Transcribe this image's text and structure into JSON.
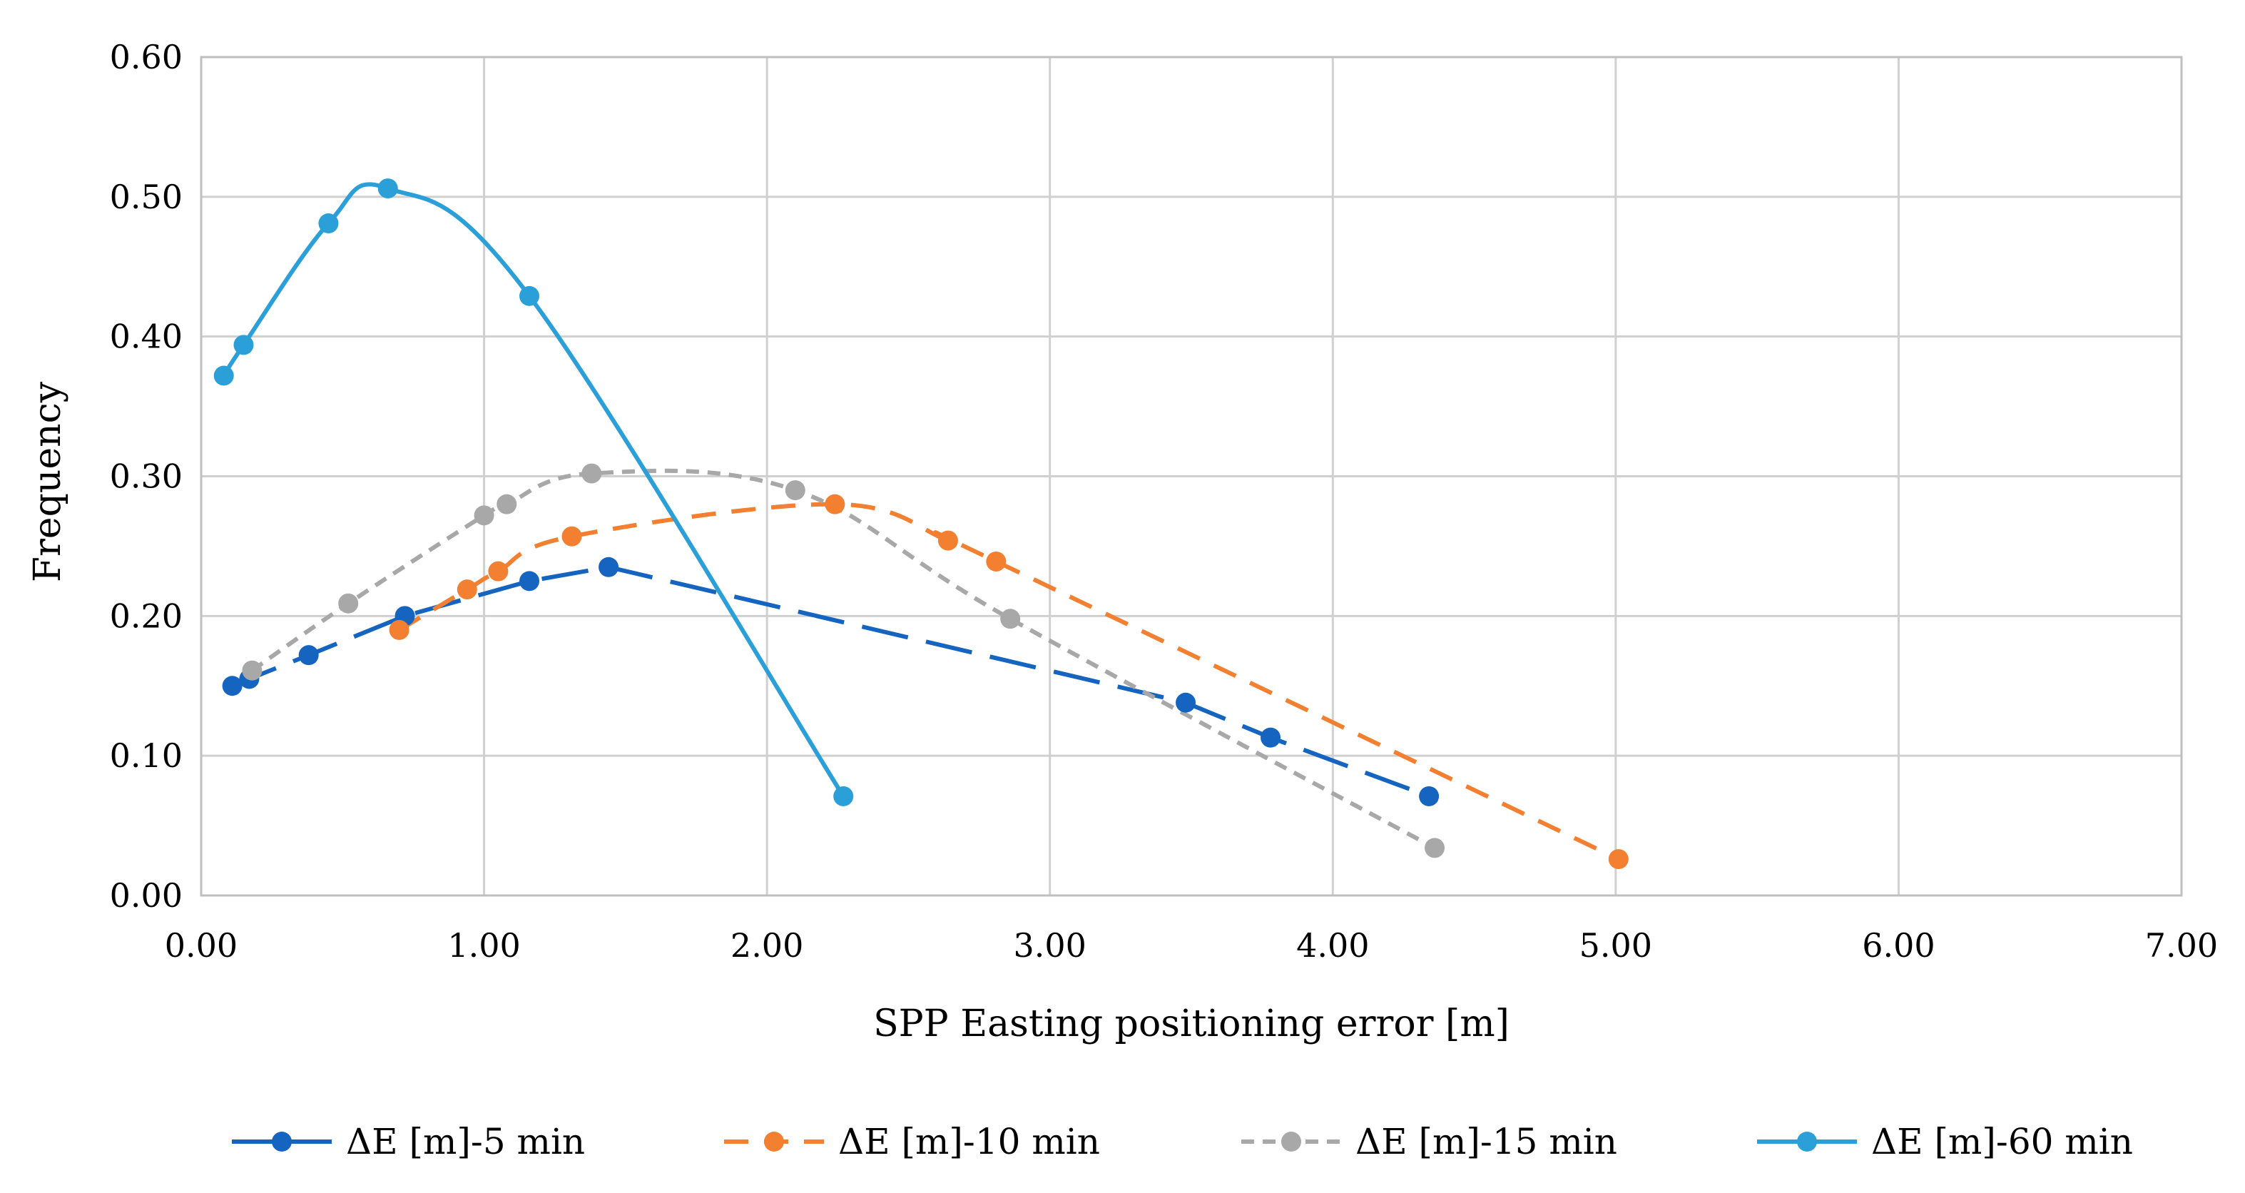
{
  "chart_data": {
    "type": "line",
    "title": "",
    "xlabel": "SPP Easting positioning error [m]",
    "ylabel": "Frequency",
    "xlim": [
      0,
      7
    ],
    "ylim": [
      0,
      0.6
    ],
    "xticks": [
      "0.00",
      "1.00",
      "2.00",
      "3.00",
      "4.00",
      "5.00",
      "6.00",
      "7.00"
    ],
    "yticks": [
      "0.00",
      "0.10",
      "0.20",
      "0.30",
      "0.40",
      "0.50",
      "0.60"
    ],
    "grid": true,
    "legend_position": "bottom",
    "series": [
      {
        "name": "ΔE [m]-5 min",
        "color": "#1565C0",
        "line_style": "long-dash",
        "smooth": false,
        "x": [
          0.11,
          0.17,
          0.38,
          0.72,
          1.16,
          1.44,
          3.48,
          3.78,
          4.34
        ],
        "y": [
          0.15,
          0.155,
          0.172,
          0.2,
          0.225,
          0.235,
          0.138,
          0.113,
          0.071
        ]
      },
      {
        "name": "ΔE [m]-10 min",
        "color": "#F28030",
        "line_style": "dash",
        "smooth": true,
        "x": [
          0.7,
          0.94,
          1.05,
          1.31,
          2.24,
          2.64,
          2.81,
          5.01
        ],
        "y": [
          0.19,
          0.219,
          0.232,
          0.257,
          0.28,
          0.254,
          0.239,
          0.026
        ]
      },
      {
        "name": "ΔE [m]-15 min",
        "color": "#A8A8A8",
        "line_style": "short-dash",
        "smooth": true,
        "x": [
          0.18,
          0.52,
          1.0,
          1.08,
          1.38,
          2.1,
          2.86,
          4.36
        ],
        "y": [
          0.161,
          0.209,
          0.272,
          0.28,
          0.302,
          0.29,
          0.198,
          0.034
        ]
      },
      {
        "name": "ΔE [m]-60 min",
        "color": "#2A9FD8",
        "line_style": "solid",
        "smooth": true,
        "x": [
          0.08,
          0.15,
          0.45,
          0.66,
          1.16,
          2.27
        ],
        "y": [
          0.372,
          0.394,
          0.481,
          0.506,
          0.429,
          0.071
        ]
      }
    ]
  }
}
